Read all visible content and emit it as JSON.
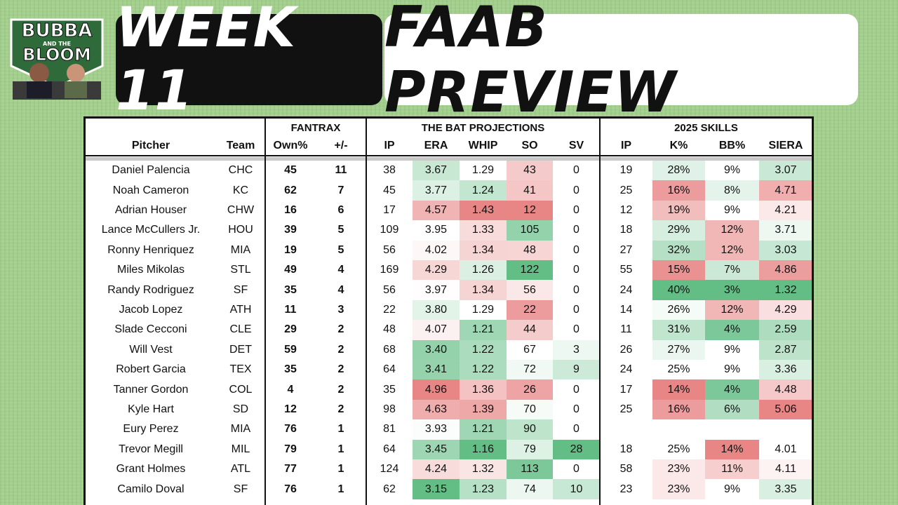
{
  "logo": {
    "line1": "BUBBA",
    "line2": "AND THE",
    "line3": "BLOOM"
  },
  "header": {
    "left": "WEEK 11",
    "right": "FAAB PREVIEW"
  },
  "table": {
    "groups": [
      "FANTRAX",
      "THE BAT PROJECTIONS",
      "2025 SKILLS"
    ],
    "columns": [
      "Pitcher",
      "Team",
      "Own%",
      "+/-",
      "IP",
      "ERA",
      "WHIP",
      "SO",
      "SV",
      "IP",
      "K%",
      "BB%",
      "SIERA"
    ],
    "rows": [
      [
        "Daniel Palencia",
        "CHC",
        "45",
        "11",
        "38",
        "3.67",
        "1.29",
        "43",
        "0",
        "19",
        "28%",
        "9%",
        "3.07"
      ],
      [
        "Noah Cameron",
        "KC",
        "62",
        "7",
        "45",
        "3.77",
        "1.24",
        "41",
        "0",
        "25",
        "16%",
        "8%",
        "4.71"
      ],
      [
        "Adrian Houser",
        "CHW",
        "16",
        "6",
        "17",
        "4.57",
        "1.43",
        "12",
        "0",
        "12",
        "19%",
        "9%",
        "4.21"
      ],
      [
        "Lance McCullers Jr.",
        "HOU",
        "39",
        "5",
        "109",
        "3.95",
        "1.33",
        "105",
        "0",
        "18",
        "29%",
        "12%",
        "3.71"
      ],
      [
        "Ronny Henriquez",
        "MIA",
        "19",
        "5",
        "56",
        "4.02",
        "1.34",
        "48",
        "0",
        "27",
        "32%",
        "12%",
        "3.03"
      ],
      [
        "Miles Mikolas",
        "STL",
        "49",
        "4",
        "169",
        "4.29",
        "1.26",
        "122",
        "0",
        "55",
        "15%",
        "7%",
        "4.86"
      ],
      [
        "Randy Rodriguez",
        "SF",
        "35",
        "4",
        "56",
        "3.97",
        "1.34",
        "56",
        "0",
        "24",
        "40%",
        "3%",
        "1.32"
      ],
      [
        "Jacob Lopez",
        "ATH",
        "11",
        "3",
        "22",
        "3.80",
        "1.29",
        "22",
        "0",
        "14",
        "26%",
        "12%",
        "4.29"
      ],
      [
        "Slade Cecconi",
        "CLE",
        "29",
        "2",
        "48",
        "4.07",
        "1.21",
        "44",
        "0",
        "11",
        "31%",
        "4%",
        "2.59"
      ],
      [
        "Will Vest",
        "DET",
        "59",
        "2",
        "68",
        "3.40",
        "1.22",
        "67",
        "3",
        "26",
        "27%",
        "9%",
        "2.87"
      ],
      [
        "Robert Garcia",
        "TEX",
        "35",
        "2",
        "64",
        "3.41",
        "1.22",
        "72",
        "9",
        "24",
        "25%",
        "9%",
        "3.36"
      ],
      [
        "Tanner Gordon",
        "COL",
        "4",
        "2",
        "35",
        "4.96",
        "1.36",
        "26",
        "0",
        "17",
        "14%",
        "4%",
        "4.48"
      ],
      [
        "Kyle Hart",
        "SD",
        "12",
        "2",
        "98",
        "4.63",
        "1.39",
        "70",
        "0",
        "25",
        "16%",
        "6%",
        "5.06"
      ],
      [
        "Eury Perez",
        "MIA",
        "76",
        "1",
        "81",
        "3.93",
        "1.21",
        "90",
        "0",
        null,
        null,
        null,
        null
      ],
      [
        "Trevor Megill",
        "MIL",
        "79",
        "1",
        "64",
        "3.45",
        "1.16",
        "79",
        "28",
        "18",
        "25%",
        "14%",
        "4.01"
      ],
      [
        "Grant Holmes",
        "ATL",
        "77",
        "1",
        "124",
        "4.24",
        "1.32",
        "113",
        "0",
        "58",
        "23%",
        "11%",
        "4.11"
      ],
      [
        "Camilo Doval",
        "SF",
        "76",
        "1",
        "62",
        "3.15",
        "1.23",
        "74",
        "10",
        "23",
        "23%",
        "9%",
        "3.35"
      ]
    ]
  }
}
